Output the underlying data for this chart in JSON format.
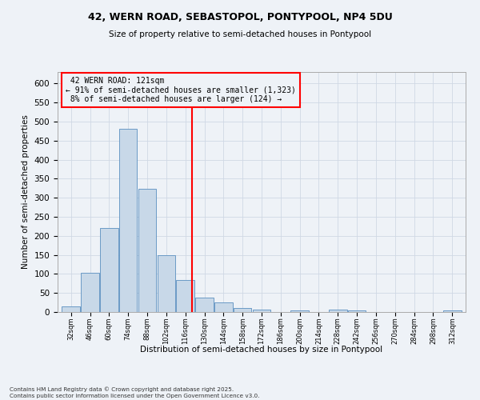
{
  "title1": "42, WERN ROAD, SEBASTOPOL, PONTYPOOL, NP4 5DU",
  "title2": "Size of property relative to semi-detached houses in Pontypool",
  "xlabel": "Distribution of semi-detached houses by size in Pontypool",
  "ylabel": "Number of semi-detached properties",
  "footnote": "Contains HM Land Registry data © Crown copyright and database right 2025.\nContains public sector information licensed under the Open Government Licence v3.0.",
  "bins": [
    "32sqm",
    "46sqm",
    "60sqm",
    "74sqm",
    "88sqm",
    "102sqm",
    "116sqm",
    "130sqm",
    "144sqm",
    "158sqm",
    "172sqm",
    "186sqm",
    "200sqm",
    "214sqm",
    "228sqm",
    "242sqm",
    "256sqm",
    "270sqm",
    "284sqm",
    "298sqm",
    "312sqm"
  ],
  "values": [
    15,
    103,
    220,
    480,
    323,
    150,
    84,
    38,
    25,
    10,
    7,
    0,
    5,
    0,
    6,
    5,
    0,
    0,
    0,
    0,
    5
  ],
  "bar_color": "#c8d8e8",
  "bar_edge_color": "#5a8fc0",
  "property_size": 121,
  "property_label": "42 WERN ROAD: 121sqm",
  "pct_smaller": 91,
  "n_smaller": 1323,
  "pct_larger": 8,
  "n_larger": 124,
  "vline_color": "red",
  "annotation_box_color": "red",
  "bg_color": "#eef2f7",
  "grid_color": "#d0d8e4",
  "ylim": [
    0,
    630
  ],
  "yticks": [
    0,
    50,
    100,
    150,
    200,
    250,
    300,
    350,
    400,
    450,
    500,
    550,
    600
  ]
}
